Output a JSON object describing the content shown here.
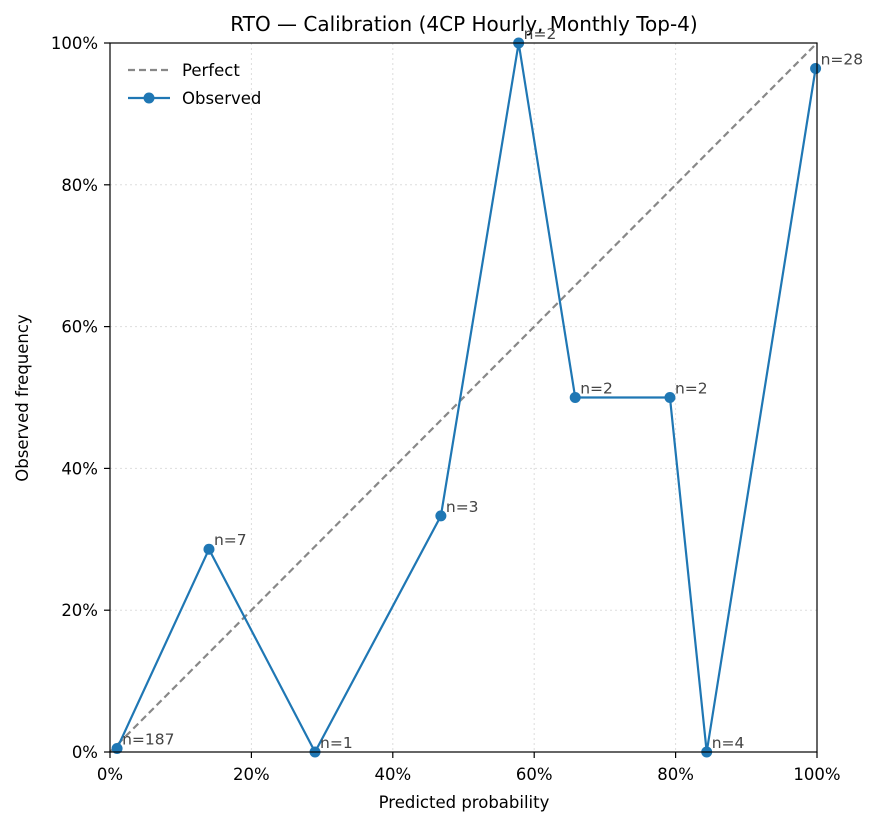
{
  "chart_data": {
    "type": "line",
    "title": "RTO — Calibration (4CP Hourly, Monthly Top-4)",
    "xlabel": "Predicted probability",
    "ylabel": "Observed frequency",
    "xlim": [
      0,
      1
    ],
    "ylim": [
      0,
      1
    ],
    "x_ticks": [
      0,
      0.2,
      0.4,
      0.6,
      0.8,
      1.0
    ],
    "x_tick_labels": [
      "0%",
      "20%",
      "40%",
      "60%",
      "80%",
      "100%"
    ],
    "y_ticks": [
      0,
      0.2,
      0.4,
      0.6,
      0.8,
      1.0
    ],
    "y_tick_labels": [
      "0%",
      "20%",
      "40%",
      "60%",
      "80%",
      "100%"
    ],
    "grid": true,
    "legend": {
      "position": "top-left",
      "entries": [
        "Perfect",
        "Observed"
      ]
    },
    "series": [
      {
        "name": "Perfect",
        "style": "dashed",
        "color": "#888888",
        "x": [
          0,
          1
        ],
        "y": [
          0,
          1
        ]
      },
      {
        "name": "Observed",
        "style": "solid-marker",
        "color": "#1f77b4",
        "x": [
          0.01,
          0.14,
          0.29,
          0.468,
          0.578,
          0.658,
          0.792,
          0.844,
          0.998
        ],
        "y": [
          0.005,
          0.286,
          0.0,
          0.333,
          1.0,
          0.5,
          0.5,
          0.0,
          0.964
        ],
        "annotations": [
          "n=187",
          "n=7",
          "n=1",
          "n=3",
          "n=2",
          "n=2",
          "n=2",
          "n=4",
          "n=28"
        ]
      }
    ]
  }
}
